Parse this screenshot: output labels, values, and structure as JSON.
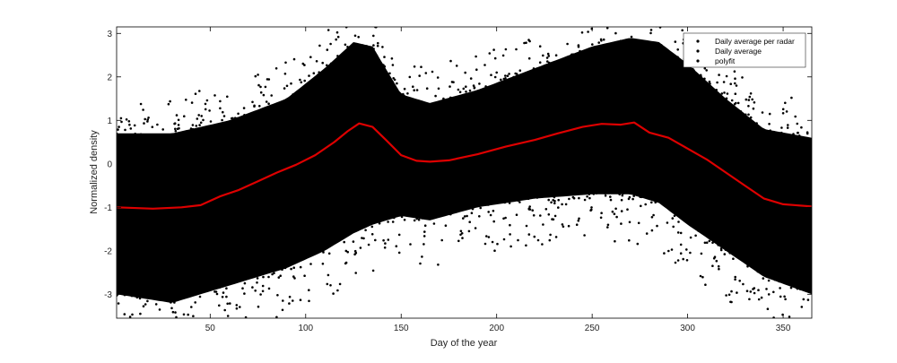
{
  "chart_data": {
    "type": "scatter",
    "xlabel": "Day of the year",
    "ylabel": "Normalized density",
    "xlim": [
      1,
      365
    ],
    "ylim": [
      -3.55,
      3.15
    ],
    "x_ticks": [
      50,
      100,
      150,
      200,
      250,
      300,
      350
    ],
    "y_ticks": [
      -3,
      -2,
      -1,
      0,
      1,
      2,
      3
    ],
    "grid": false,
    "legend_position": "top-right",
    "colors": {
      "scatter": "#000000",
      "average": "#000000",
      "fit": "#dd0000"
    },
    "series": [
      {
        "name": "Daily average per radar",
        "kind": "scatter-band",
        "upper_envelope": {
          "x": [
            1,
            30,
            60,
            90,
            110,
            125,
            135,
            150,
            165,
            190,
            220,
            250,
            270,
            285,
            300,
            320,
            340,
            365
          ],
          "y": [
            0.7,
            0.7,
            1.0,
            1.5,
            2.2,
            2.8,
            2.7,
            1.6,
            1.4,
            1.7,
            2.2,
            2.7,
            2.9,
            2.8,
            2.3,
            1.5,
            0.8,
            0.6
          ]
        },
        "lower_envelope": {
          "x": [
            1,
            30,
            60,
            90,
            110,
            125,
            135,
            150,
            165,
            190,
            220,
            250,
            270,
            285,
            300,
            320,
            340,
            365
          ],
          "y": [
            -3.0,
            -3.2,
            -2.8,
            -2.4,
            -2.0,
            -1.6,
            -1.4,
            -1.2,
            -1.3,
            -1.0,
            -0.8,
            -0.7,
            -0.7,
            -0.9,
            -1.4,
            -2.0,
            -2.6,
            -3.0
          ]
        }
      },
      {
        "name": "Daily average",
        "kind": "points"
      },
      {
        "name": "polyfit",
        "kind": "line",
        "x": [
          1,
          20,
          35,
          45,
          55,
          65,
          75,
          85,
          95,
          105,
          115,
          122,
          128,
          135,
          142,
          150,
          158,
          165,
          175,
          190,
          205,
          220,
          232,
          245,
          255,
          265,
          272,
          280,
          290,
          300,
          310,
          320,
          330,
          340,
          350,
          365
        ],
        "y": [
          -1.0,
          -1.03,
          -1.0,
          -0.95,
          -0.75,
          -0.6,
          -0.4,
          -0.2,
          -0.02,
          0.2,
          0.5,
          0.75,
          0.93,
          0.85,
          0.55,
          0.2,
          0.07,
          0.05,
          0.08,
          0.22,
          0.4,
          0.55,
          0.7,
          0.85,
          0.92,
          0.9,
          0.95,
          0.72,
          0.6,
          0.35,
          0.1,
          -0.2,
          -0.5,
          -0.8,
          -0.93,
          -0.98
        ]
      }
    ]
  }
}
